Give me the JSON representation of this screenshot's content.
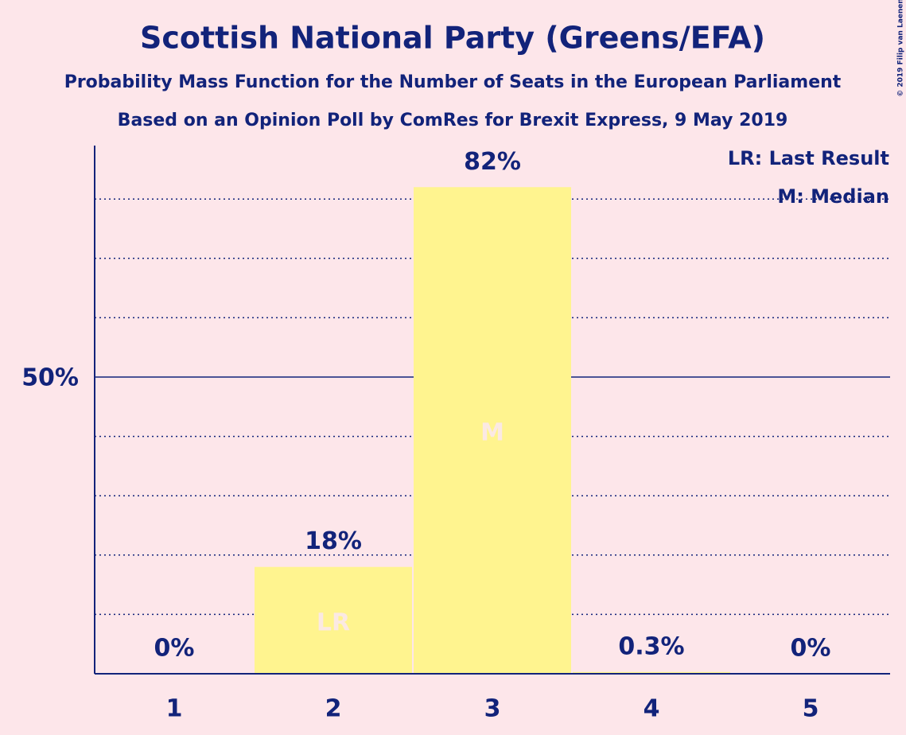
{
  "chart_data": {
    "type": "bar",
    "title": "Scottish National Party (Greens/EFA)",
    "subtitles": [
      "Probability Mass Function for the Number of Seats in the European Parliament",
      "Based on an Opinion Poll by ComRes for Brexit Express, 9 May 2019"
    ],
    "categories": [
      "1",
      "2",
      "3",
      "4",
      "5"
    ],
    "values": [
      0,
      18,
      82,
      0.3,
      0
    ],
    "value_labels": [
      "0%",
      "18%",
      "82%",
      "0.3%",
      "0%"
    ],
    "color": "#fff48f",
    "ylim": [
      0,
      89
    ],
    "yticks": [
      {
        "value": 50,
        "label": "50%"
      }
    ],
    "ygrid": [
      10,
      20,
      30,
      40,
      60,
      70,
      80
    ],
    "annotations": [
      {
        "x": "2",
        "text": "LR"
      },
      {
        "x": "3",
        "text": "M"
      }
    ],
    "legend": [
      "LR: Last Result",
      "M: Median"
    ],
    "copyright": "© 2019 Filip van Laenen"
  }
}
